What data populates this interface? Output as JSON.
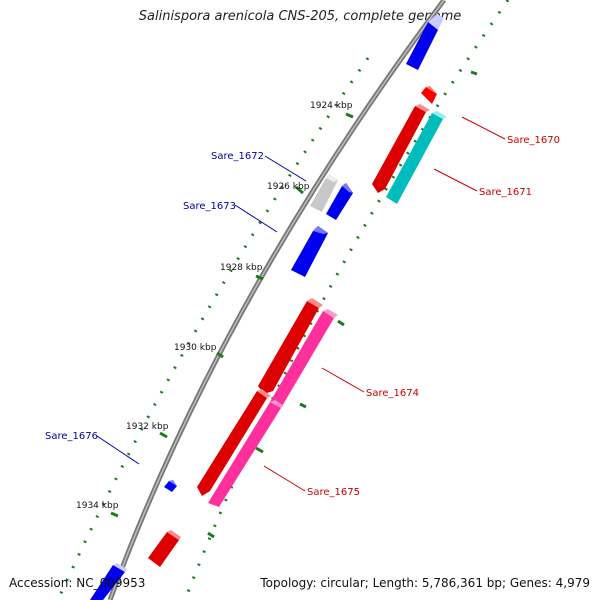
{
  "title": "Salinispora arenicola CNS-205, complete genome",
  "footer": {
    "accession": "Accession: NC_009953",
    "summary": "Topology: circular; Length: 5,786,361 bp; Genes: 4,979"
  },
  "colors": {
    "backbone": "#888888",
    "ticks": "#1e7a1e",
    "forward_gene": "#ff0000",
    "reverse_gene": "#0000ff",
    "cyan_gene": "#00c8c8",
    "pink_gene": "#ff2f9b",
    "grey_gene": "#c8c8c8",
    "forward_label": "#cc0000",
    "reverse_label": "#0000aa"
  },
  "scale_labels": [
    {
      "id": "kbp-1924",
      "text": "1924 kbp"
    },
    {
      "id": "kbp-1926",
      "text": "1926 kbp"
    },
    {
      "id": "kbp-1928",
      "text": "1928 kbp"
    },
    {
      "id": "kbp-1930",
      "text": "1930 kbp"
    },
    {
      "id": "kbp-1932",
      "text": "1932 kbp"
    },
    {
      "id": "kbp-1934",
      "text": "1934 kbp"
    }
  ],
  "gene_labels": [
    {
      "id": "sare-1670",
      "text": "Sare_1670",
      "strand": "forward"
    },
    {
      "id": "sare-1671",
      "text": "Sare_1671",
      "strand": "forward"
    },
    {
      "id": "sare-1672",
      "text": "Sare_1672",
      "strand": "reverse"
    },
    {
      "id": "sare-1673",
      "text": "Sare_1673",
      "strand": "reverse"
    },
    {
      "id": "sare-1674",
      "text": "Sare_1674",
      "strand": "forward"
    },
    {
      "id": "sare-1675",
      "text": "Sare_1675",
      "strand": "forward"
    },
    {
      "id": "sare-1676",
      "text": "Sare_1676",
      "strand": "reverse"
    }
  ]
}
